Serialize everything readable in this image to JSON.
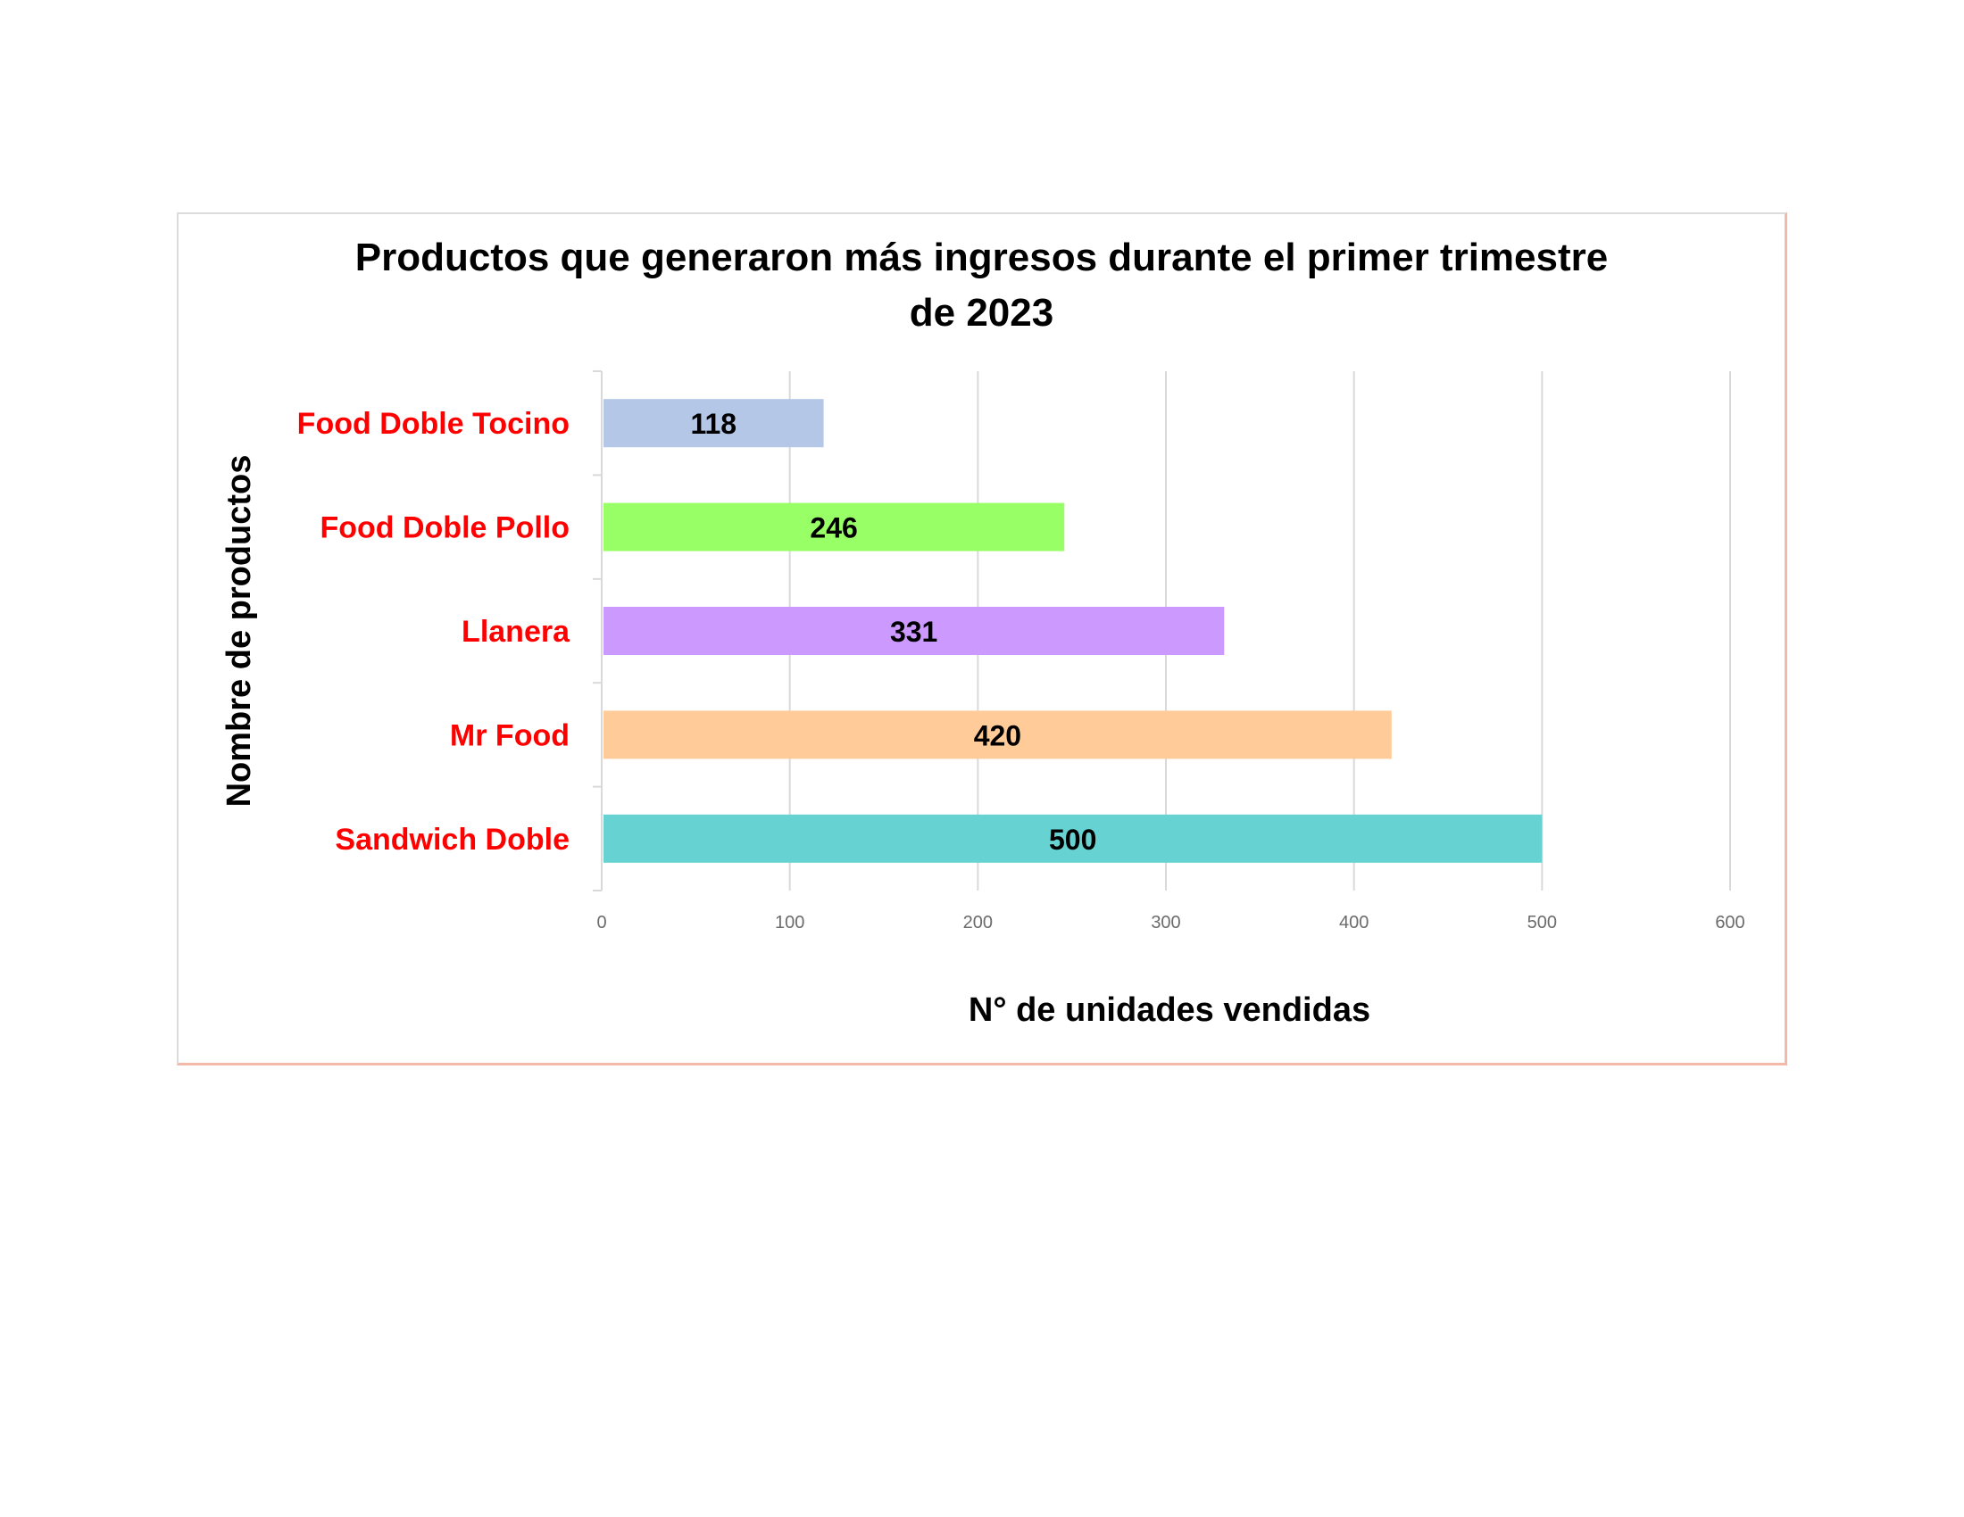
{
  "chart_data": {
    "type": "bar",
    "orientation": "horizontal",
    "title": "Productos que generaron más ingresos durante el primer trimestre de 2023",
    "title_lines": [
      "Productos que generaron más ingresos durante el primer trimestre",
      "de 2023"
    ],
    "xlabel": "N° de unidades vendidas",
    "ylabel": "Nombre de productos",
    "categories": [
      "Food Doble Tocino",
      "Food Doble Pollo",
      "Llanera",
      "Mr Food",
      "Sandwich Doble"
    ],
    "values": [
      118,
      246,
      331,
      420,
      500
    ],
    "data_labels": [
      "118",
      "246",
      "331",
      "420",
      "500"
    ],
    "bar_colors": [
      "#b4c7e7",
      "#99ff66",
      "#cc99ff",
      "#ffcc99",
      "#66d2d2"
    ],
    "category_label_color": "#ff0000",
    "xlim": [
      0,
      600
    ],
    "xticks": [
      0,
      100,
      200,
      300,
      400,
      500,
      600
    ],
    "xtick_labels": [
      "0",
      "100",
      "200",
      "300",
      "400",
      "500",
      "600"
    ],
    "grid": "vertical",
    "legend": "none"
  }
}
